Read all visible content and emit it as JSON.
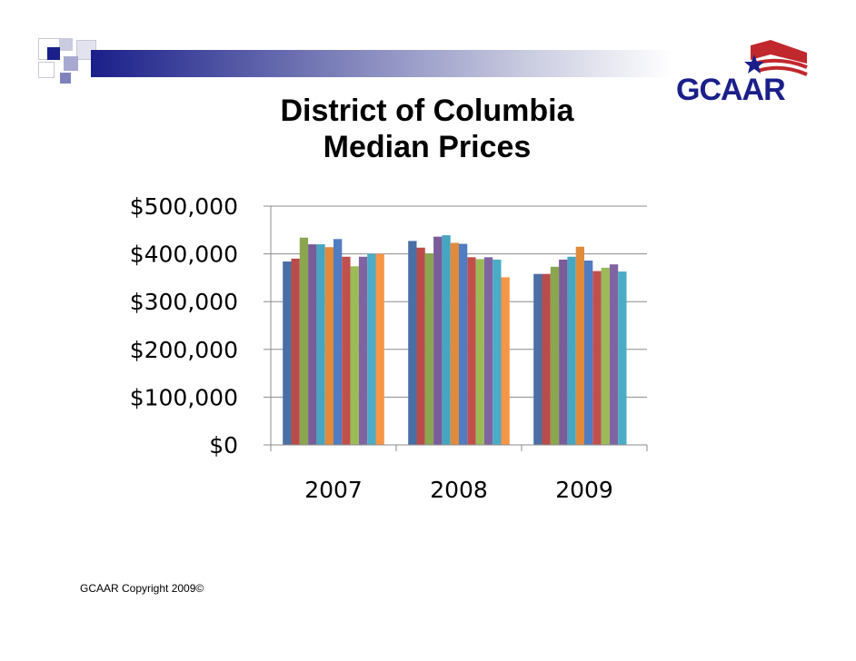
{
  "slide": {
    "logo_text": "GCAAR",
    "footer": "GCAAR Copyright 2009©"
  },
  "chart_data": {
    "type": "bar",
    "title_lines": [
      "District of Columbia",
      "Median Prices"
    ],
    "categories": [
      "2007",
      "2008",
      "2009"
    ],
    "ylim": [
      0,
      500000
    ],
    "yticks": [
      0,
      100000,
      200000,
      300000,
      400000,
      500000
    ],
    "ytick_labels": [
      "$0",
      "$100,000",
      "$200,000",
      "$300,000",
      "$400,000",
      "$500,000"
    ],
    "grid": true,
    "legend": "none",
    "series": [
      {
        "color": "#4a6fa5",
        "values": [
          384000,
          427000,
          358000
        ]
      },
      {
        "color": "#b94c4b",
        "values": [
          390000,
          413000,
          358000
        ]
      },
      {
        "color": "#8aa64f",
        "values": [
          434000,
          401000,
          373000
        ]
      },
      {
        "color": "#7a5c9a",
        "values": [
          420000,
          436000,
          388000
        ]
      },
      {
        "color": "#46a5c0",
        "values": [
          420000,
          439000,
          394000
        ]
      },
      {
        "color": "#e08a3c",
        "values": [
          414000,
          423000,
          415000
        ]
      },
      {
        "color": "#4f7cc2",
        "values": [
          431000,
          421000,
          386000
        ]
      },
      {
        "color": "#c0504d",
        "values": [
          394000,
          393000,
          364000
        ]
      },
      {
        "color": "#9bbb59",
        "values": [
          374000,
          389000,
          371000
        ]
      },
      {
        "color": "#8064a2",
        "values": [
          394000,
          393000,
          378000
        ]
      },
      {
        "color": "#4bacc6",
        "values": [
          400000,
          388000,
          363000
        ]
      },
      {
        "color": "#f79646",
        "values": [
          400000,
          351000,
          null
        ]
      }
    ]
  }
}
